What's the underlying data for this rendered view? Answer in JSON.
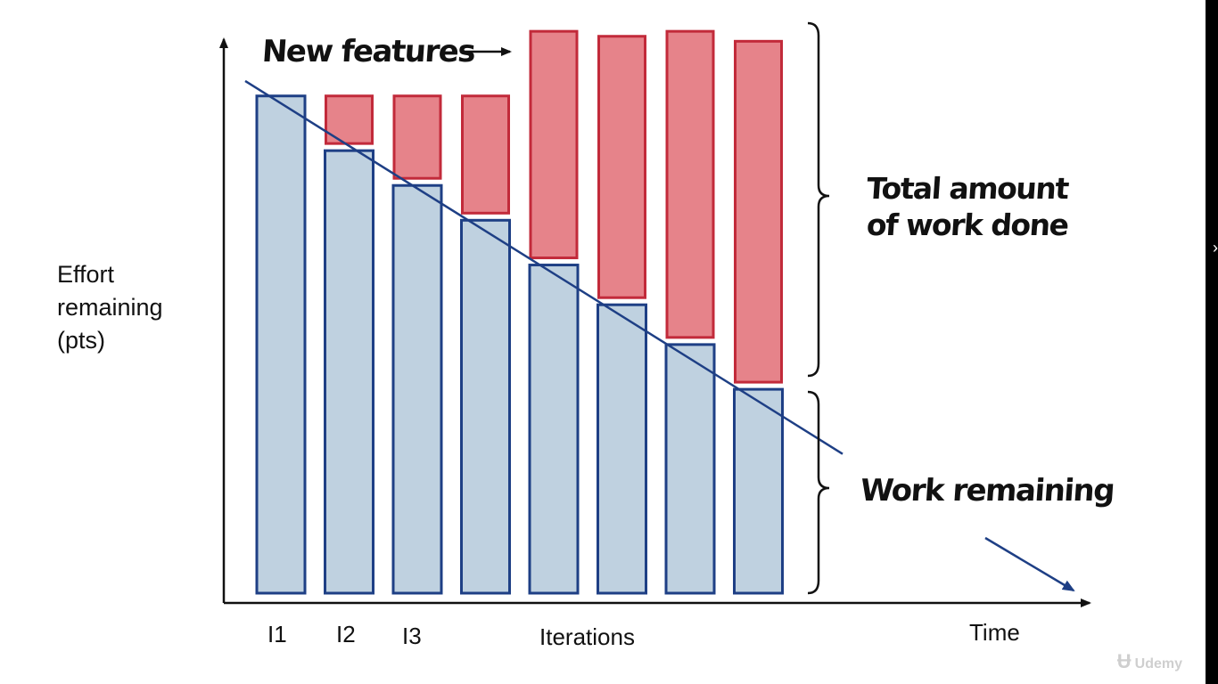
{
  "chart_data": {
    "type": "bar",
    "subtype": "stacked",
    "categories": [
      "I1",
      "I2",
      "I3",
      "",
      "",
      "",
      "",
      ""
    ],
    "series": [
      {
        "name": "Work remaining",
        "color": "#bfd1e0",
        "edge": "#1e3f85",
        "values": [
          100,
          89,
          82,
          75,
          66,
          58,
          50,
          41
        ]
      },
      {
        "name": "New features",
        "color": "#e6838a",
        "edge": "#c22a3a",
        "values": [
          0,
          11,
          18,
          25,
          47,
          54,
          63,
          70
        ]
      }
    ],
    "trend_line": {
      "from": 103,
      "to": 28
    },
    "ylim": [
      0,
      115
    ],
    "xlabel": "Time",
    "ylabel_lines": [
      "Effort",
      "remaining",
      "(pts)"
    ],
    "tick_labels": [
      "I1",
      "I2",
      "I3"
    ],
    "iterations_label": "Iterations",
    "annotations": {
      "new_features": "New features",
      "total_work_line1": "Total amount",
      "total_work_line2": "of work done",
      "work_remaining": "Work remaining"
    },
    "grid": false,
    "legend": "none"
  },
  "watermark": "Udemy"
}
